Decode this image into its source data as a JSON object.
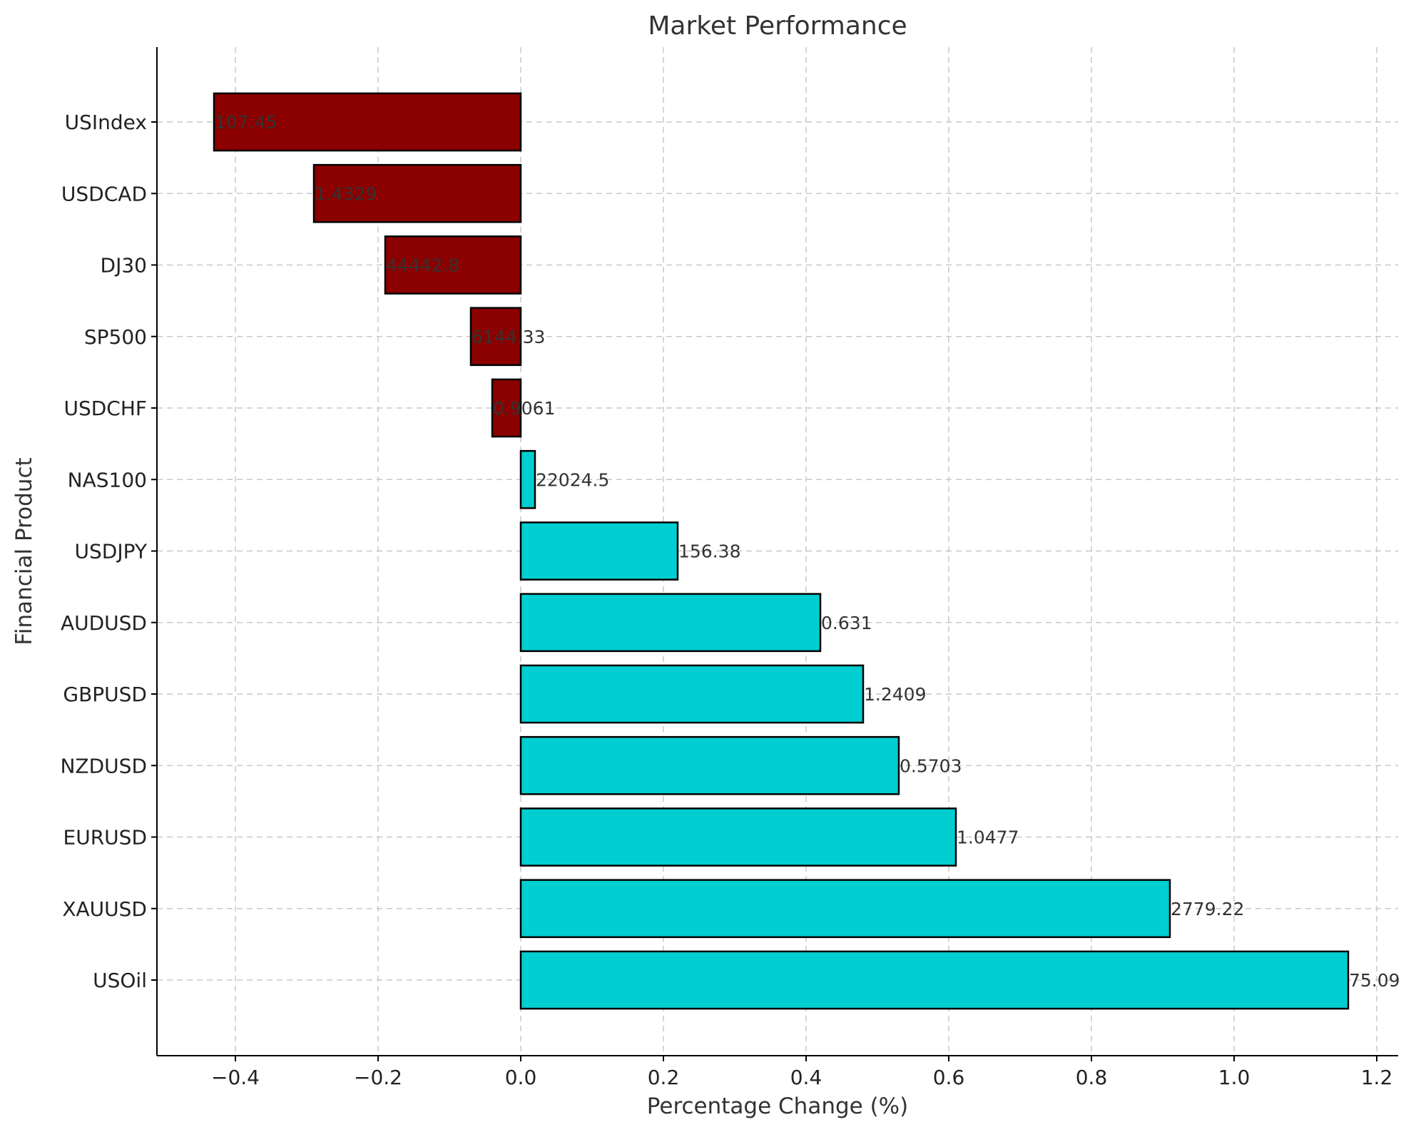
{
  "chart_data": {
    "type": "bar",
    "orientation": "horizontal",
    "title": "Market Performance",
    "xlabel": "Percentage Change (%)",
    "ylabel": "Financial Product",
    "xlim": [
      -0.51,
      1.23
    ],
    "xticks": [
      -0.4,
      -0.2,
      0.0,
      0.2,
      0.4,
      0.6,
      0.8,
      1.0,
      1.2
    ],
    "xtick_labels": [
      "−0.4",
      "−0.2",
      "0.0",
      "0.2",
      "0.4",
      "0.6",
      "0.8",
      "1.0",
      "1.2"
    ],
    "grid": true,
    "colors": {
      "negative": "#8b0000",
      "positive": "#00ced1"
    },
    "categories": [
      "USIndex",
      "USDCAD",
      "DJ30",
      "SP500",
      "USDCHF",
      "NAS100",
      "USDJPY",
      "AUDUSD",
      "GBPUSD",
      "NZDUSD",
      "EURUSD",
      "XAUUSD",
      "USOil"
    ],
    "values": [
      -0.43,
      -0.29,
      -0.19,
      -0.07,
      -0.04,
      0.02,
      0.22,
      0.42,
      0.48,
      0.53,
      0.61,
      0.91,
      1.16
    ],
    "data_labels": [
      "107.45",
      "1.4329",
      "44442.8",
      "6144.33",
      "0.9061",
      "22024.5",
      "156.38",
      "0.631",
      "1.2409",
      "0.5703",
      "1.0477",
      "2779.22",
      "75.09"
    ]
  }
}
